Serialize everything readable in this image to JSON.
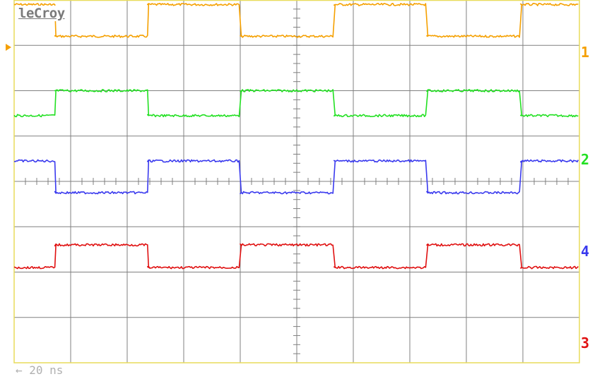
{
  "brand": "leCroy",
  "timebase_partial": "←  20 ns",
  "colors": {
    "grid": "#808080",
    "frame": "#e8dc5a",
    "ch1": "#f5a000",
    "ch2": "#22e022",
    "ch3": "#e01010",
    "ch4": "#3a3aee",
    "marker": "#f5a000"
  },
  "channel_labels": [
    "1",
    "2",
    "4",
    "3"
  ],
  "chart_data": {
    "type": "line",
    "title": "",
    "xlabel": "",
    "ylabel": "",
    "grid": true,
    "divisions": {
      "x": 10,
      "y": 8
    },
    "series": [
      {
        "name": "1",
        "color": "#f5a000",
        "high": 0.8,
        "low": 0.1,
        "levels": [
          0,
          1,
          1,
          0,
          0,
          1,
          1,
          0,
          0,
          1,
          1,
          0,
          0
        ],
        "edges": [
          0.72,
          2.36,
          4.0,
          5.66,
          7.3,
          8.96
        ]
      },
      {
        "name": "2",
        "color": "#22e022",
        "high": 2.55,
        "low": 2.0,
        "levels": [
          1,
          0,
          0,
          1,
          1,
          0,
          0,
          1,
          1,
          0,
          0,
          1,
          1
        ],
        "edges": [
          0.72,
          2.36,
          4.0,
          5.66,
          7.3,
          8.96
        ]
      },
      {
        "name": "4",
        "color": "#3a3aee",
        "high": 4.25,
        "low": 3.55,
        "levels": [
          0,
          1,
          1,
          0,
          0,
          1,
          1,
          0,
          0,
          1,
          1,
          0,
          0
        ],
        "edges": [
          0.72,
          2.36,
          4.0,
          5.66,
          7.3,
          8.96
        ]
      },
      {
        "name": "3",
        "color": "#e01010",
        "high": 5.9,
        "low": 5.4,
        "levels": [
          1,
          0,
          0,
          1,
          1,
          0,
          0,
          1,
          1,
          0,
          0,
          1,
          1
        ],
        "edges": [
          0.72,
          2.36,
          4.0,
          5.66,
          7.3,
          8.96
        ]
      }
    ]
  }
}
